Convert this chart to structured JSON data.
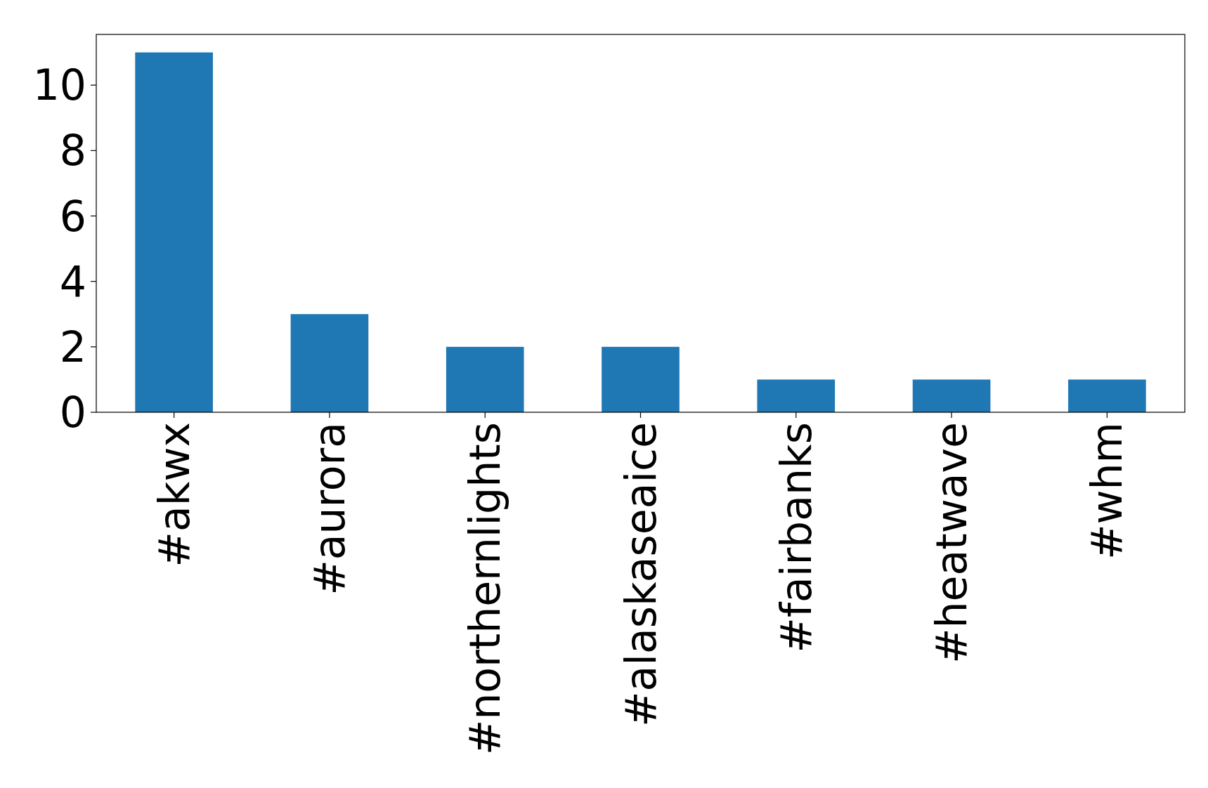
{
  "chart_data": {
    "type": "bar",
    "categories": [
      "#akwx",
      "#aurora",
      "#northernlights",
      "#alaskaseaice",
      "#fairbanks",
      "#heatwave",
      "#whm"
    ],
    "values": [
      11,
      3,
      2,
      2,
      1,
      1,
      1
    ],
    "color": "#1f77b4",
    "ylim": [
      0,
      11.55
    ],
    "yticks": [
      0,
      2,
      4,
      6,
      8,
      10
    ],
    "grid": false
  }
}
